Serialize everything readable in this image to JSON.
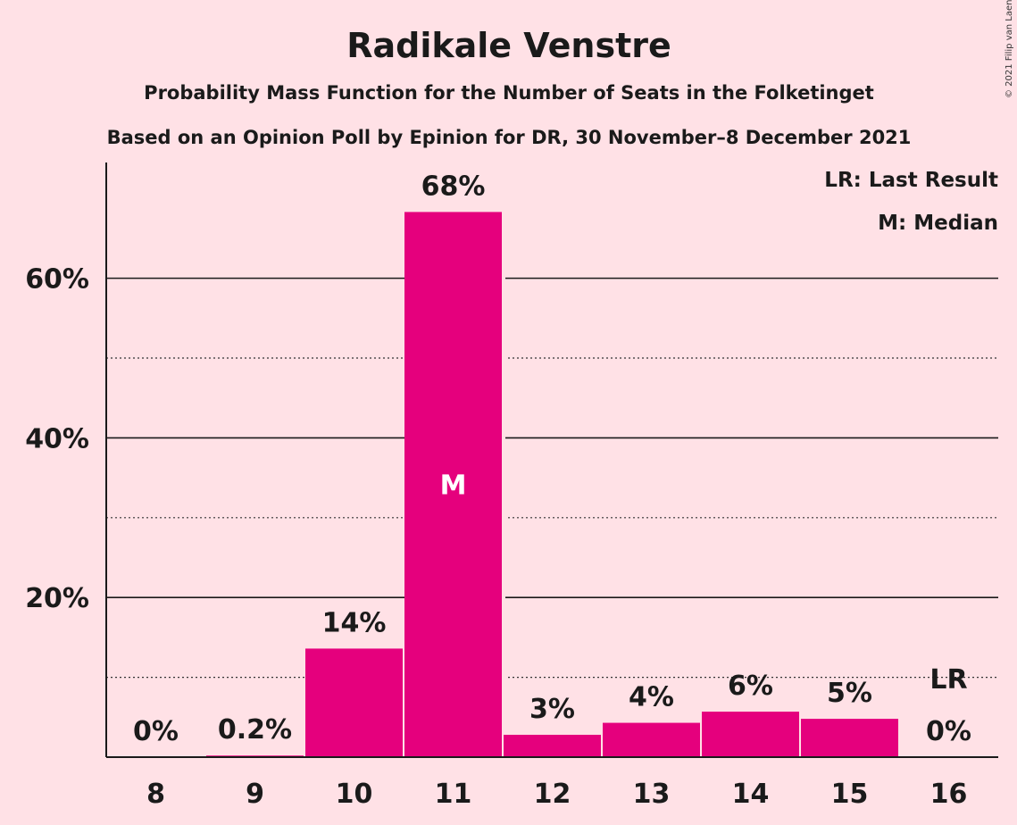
{
  "chart_data": {
    "type": "bar",
    "title": "Radikale Venstre",
    "subtitle": "Probability Mass Function for the Number of Seats in the Folketinget",
    "subtitle2": "Based on an Opinion Poll by Epinion for DR, 30 November–8 December 2021",
    "copyright": "© 2021 Filip van Laenen",
    "categories": [
      "8",
      "9",
      "10",
      "11",
      "12",
      "13",
      "14",
      "15",
      "16"
    ],
    "values": [
      0,
      0.2,
      13.6,
      68.3,
      2.8,
      4.3,
      5.7,
      4.8,
      0
    ],
    "data_labels": [
      "0%",
      "0.2%",
      "14%",
      "68%",
      "3%",
      "4%",
      "6%",
      "5%",
      "0%"
    ],
    "ylim": [
      0,
      74.5
    ],
    "yticks": [
      20,
      40,
      60
    ],
    "ytick_labels": [
      "20%",
      "40%",
      "60%"
    ],
    "minor_gridlines": [
      10,
      30,
      50
    ],
    "median_index": 3,
    "median_marker": "M",
    "last_result_index": 8,
    "last_result_marker": "LR",
    "legend": [
      "LR: Last Result",
      "M: Median"
    ],
    "legend_position": "top-right",
    "bar_color": "#E5007D",
    "background_color": "#FFE1E6"
  }
}
